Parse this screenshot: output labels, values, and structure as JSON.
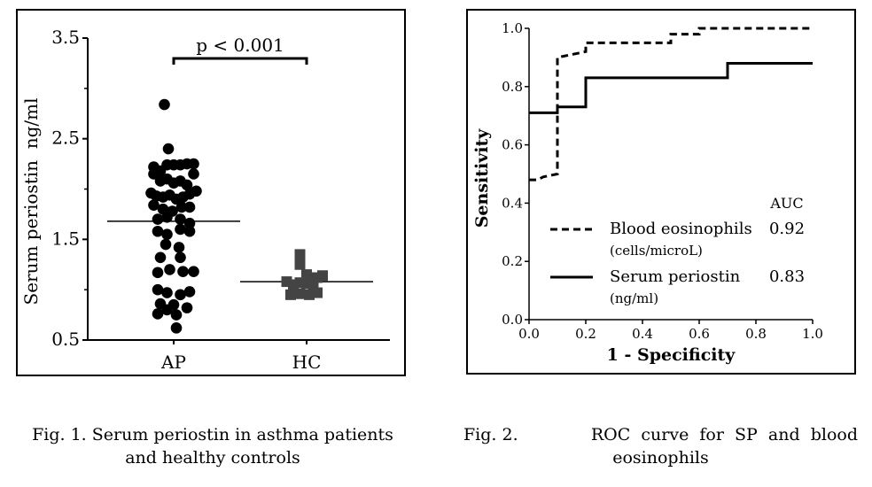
{
  "chart_data": [
    {
      "type": "scatter",
      "subtype": "dot-plot",
      "ylabel": "Serum periostin  ng/ml",
      "xlabel": "",
      "categories": [
        "AP",
        "HC"
      ],
      "yticks": [
        "3.5",
        "2.5",
        "1.5",
        "0.5"
      ],
      "ylim": [
        0.5,
        3.5
      ],
      "significance": "p < 0.001",
      "series": [
        {
          "name": "AP",
          "marker": "circle",
          "median": 1.68,
          "points": [
            [
              -0.07,
              2.84
            ],
            [
              -0.04,
              2.4
            ],
            [
              -0.15,
              2.22
            ],
            [
              -0.1,
              2.18
            ],
            [
              -0.05,
              2.24
            ],
            [
              0,
              2.24
            ],
            [
              0.05,
              2.24
            ],
            [
              0.1,
              2.25
            ],
            [
              0.15,
              2.25
            ],
            [
              -0.15,
              2.15
            ],
            [
              -0.1,
              2.08
            ],
            [
              -0.05,
              2.1
            ],
            [
              0,
              2.06
            ],
            [
              0.05,
              2.08
            ],
            [
              0.1,
              2.04
            ],
            [
              0.15,
              2.15
            ],
            [
              -0.17,
              1.96
            ],
            [
              -0.13,
              1.93
            ],
            [
              -0.08,
              1.92
            ],
            [
              -0.03,
              1.94
            ],
            [
              0.02,
              1.9
            ],
            [
              0.07,
              1.92
            ],
            [
              0.12,
              1.95
            ],
            [
              0.17,
              1.98
            ],
            [
              -0.15,
              1.84
            ],
            [
              -0.08,
              1.8
            ],
            [
              -0.01,
              1.78
            ],
            [
              0.06,
              1.82
            ],
            [
              0.12,
              1.82
            ],
            [
              -0.12,
              1.7
            ],
            [
              -0.05,
              1.72
            ],
            [
              0.05,
              1.7
            ],
            [
              0.12,
              1.66
            ],
            [
              -0.12,
              1.58
            ],
            [
              -0.05,
              1.55
            ],
            [
              0.05,
              1.6
            ],
            [
              0.12,
              1.58
            ],
            [
              -0.06,
              1.45
            ],
            [
              0.04,
              1.42
            ],
            [
              -0.1,
              1.32
            ],
            [
              0.05,
              1.32
            ],
            [
              -0.12,
              1.17
            ],
            [
              -0.03,
              1.2
            ],
            [
              0.07,
              1.18
            ],
            [
              0.15,
              1.18
            ],
            [
              -0.12,
              1.0
            ],
            [
              -0.05,
              0.97
            ],
            [
              0.05,
              0.95
            ],
            [
              0.12,
              0.98
            ],
            [
              -0.1,
              0.86
            ],
            [
              0,
              0.85
            ],
            [
              0.1,
              0.82
            ],
            [
              -0.05,
              0.8
            ],
            [
              0.02,
              0.75
            ],
            [
              -0.12,
              0.76
            ],
            [
              0.02,
              0.62
            ]
          ]
        },
        {
          "name": "HC",
          "marker": "square",
          "median": 1.08,
          "points": [
            [
              -0.05,
              1.35
            ],
            [
              -0.05,
              1.25
            ],
            [
              0,
              1.15
            ],
            [
              0.08,
              1.12
            ],
            [
              0.12,
              1.14
            ],
            [
              -0.15,
              1.08
            ],
            [
              -0.1,
              1.05
            ],
            [
              -0.05,
              1.07
            ],
            [
              0,
              1.06
            ],
            [
              0.05,
              1.05
            ],
            [
              -0.12,
              0.95
            ],
            [
              -0.05,
              0.96
            ],
            [
              0.02,
              0.95
            ],
            [
              0.08,
              0.97
            ]
          ]
        }
      ],
      "caption": "Fig. 1.  Serum periostin in asthma patients and healthy controls",
      "caption_line1": "Fig. 1.  Serum periostin in asthma patients",
      "caption_line2": "and healthy controls"
    },
    {
      "type": "line",
      "subtype": "roc-curve",
      "xlabel": "1 - Specificity",
      "ylabel": "Sensitivity",
      "xlim": [
        0,
        1
      ],
      "ylim": [
        0,
        1
      ],
      "xticks": [
        "0.0",
        "0.2",
        "0.4",
        "0.6",
        "0.8",
        "1.0"
      ],
      "yticks": [
        "0.0",
        "0.2",
        "0.4",
        "0.6",
        "0.8",
        "1.0"
      ],
      "legend_position": "bottom-left",
      "auc_header": "AUC",
      "series": [
        {
          "name": "Blood eosinophils",
          "unit": "(cells/microL)",
          "auc": "0.92",
          "style": "dashed",
          "points": [
            [
              0,
              0.48
            ],
            [
              0.03,
              0.48
            ],
            [
              0.05,
              0.49
            ],
            [
              0.1,
              0.5
            ],
            [
              0.1,
              0.9
            ],
            [
              0.15,
              0.91
            ],
            [
              0.2,
              0.92
            ],
            [
              0.2,
              0.95
            ],
            [
              0.5,
              0.95
            ],
            [
              0.5,
              0.98
            ],
            [
              0.6,
              0.98
            ],
            [
              0.6,
              1.0
            ],
            [
              1.0,
              1.0
            ]
          ]
        },
        {
          "name": "Serum periostin",
          "unit": "(ng/ml)",
          "auc": "0.83",
          "style": "solid",
          "points": [
            [
              0,
              0.71
            ],
            [
              0.1,
              0.71
            ],
            [
              0.1,
              0.73
            ],
            [
              0.2,
              0.73
            ],
            [
              0.2,
              0.83
            ],
            [
              0.7,
              0.83
            ],
            [
              0.7,
              0.88
            ],
            [
              1.0,
              0.88
            ]
          ]
        }
      ],
      "caption_line1_left": "Fig.  2.",
      "caption_line1_right": "ROC  curve  for  SP  and  blood",
      "caption_line2": "eosinophils"
    }
  ]
}
